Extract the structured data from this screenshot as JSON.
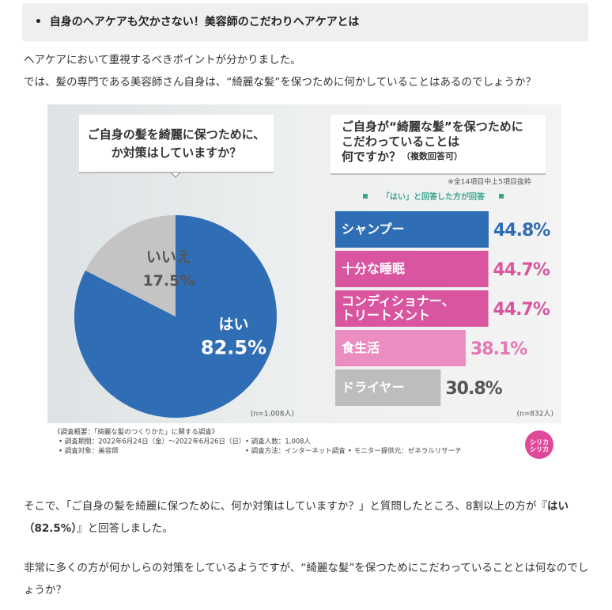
{
  "heading": "自身のヘアケアも欠かさない！美容師のこだわりヘアケアとは",
  "intro": [
    "ヘアケアにおいて重視するべきポイントが分かりました。",
    "では、髪の専門である美容師さん自身は、“綺麗な髪”を保つために何かしていることはあるのでしょうか？"
  ],
  "chart_data": [
    {
      "type": "pie",
      "title": "ご自身の髪を綺麗に保つために、\nか対策はしていますか？",
      "categories": [
        "はい",
        "いいえ"
      ],
      "values": [
        82.5,
        17.5
      ],
      "value_labels": [
        "82.5%",
        "17.5%"
      ],
      "colors": [
        "#2f6db5",
        "#c4c4c4"
      ],
      "note": "(n=1,008人)"
    },
    {
      "type": "bar",
      "orientation": "horizontal",
      "title": "ご自身が“綺麗な髪”を保つために\nこだわっていることは\n何ですか？",
      "subtitle": "（複数回答可）",
      "annotation": "※全14項目中上5項目抜粋",
      "legend": "「はい」と回答した方が回答",
      "categories": [
        "シャンプー",
        "十分な睡眠",
        "コンディショナー、\nトリートメント",
        "食生活",
        "ドライヤー"
      ],
      "values": [
        44.8,
        44.7,
        44.7,
        38.1,
        30.8
      ],
      "value_labels": [
        "44.8%",
        "44.7%",
        "44.7%",
        "38.1%",
        "30.8%"
      ],
      "colors": [
        "#2f6db5",
        "#d9559f",
        "#d9559f",
        "#ec8dc2",
        "#bdbdbd"
      ],
      "label_colors": [
        "#2f6db5",
        "#d9559f",
        "#d9559f",
        "#e476b4",
        "#555555"
      ],
      "xlim": [
        0,
        50
      ],
      "note": "(n=832人)"
    }
  ],
  "survey": {
    "title": "《調査概要：「綺麗な髪のつくりかた」に関する調査》",
    "items": [
      "• 調査期間：2022年6月24日（金）～2022年6月26日（日）",
      "• 調査人数：1,008人",
      "• 調査対象：美容師",
      "• 調査方法：インターネット調査",
      "• モニター提供元：ゼネラルリサーチ"
    ],
    "logo": "シリカ\nシリカ"
  },
  "body": [
    {
      "before": "そこで、「ご自身の髪を綺麗に保つために、何か対策はしていますか？」と質問したところ、8割以上の方が『",
      "bold": "はい（82.5%）",
      "after": "』と回答しました。"
    },
    {
      "text": "非常に多くの方が何かしらの対策をしているようですが、“綺麗な髪”を保つためにこだわっていることとは何なのでしょうか？"
    }
  ]
}
